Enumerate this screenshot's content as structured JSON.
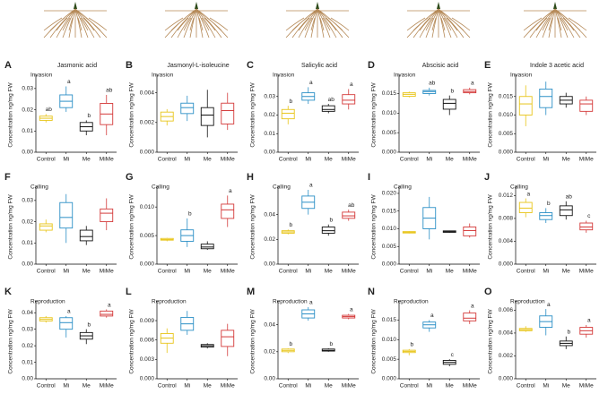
{
  "shared": {
    "categories": [
      "Control",
      "Mi",
      "Me",
      "MiMe"
    ],
    "colors": [
      "#e8c51a",
      "#2b8fc6",
      "#111111",
      "#d43a3a"
    ],
    "ylabel": "Concentration ng/mg FW"
  },
  "chart_data": [
    {
      "type": "box",
      "panel": "A",
      "title": "Jasmonic acid",
      "subtitle": "Invasion",
      "ylim": [
        0,
        0.035
      ],
      "yticks": [
        {
          "value": 0,
          "label": "0.00"
        },
        0.01,
        0.02,
        0.03
      ],
      "whisker_low": [
        0.014,
        0.019,
        0.008,
        0.008
      ],
      "q1": [
        0.015,
        0.021,
        0.01,
        0.013
      ],
      "median": [
        0.016,
        0.024,
        0.012,
        0.018
      ],
      "q3": [
        0.017,
        0.027,
        0.014,
        0.023
      ],
      "whisker_high": [
        0.018,
        0.031,
        0.015,
        0.027
      ],
      "letters": [
        "ab",
        "a",
        "b",
        "ab"
      ]
    },
    {
      "type": "box",
      "panel": "B",
      "title": "Jasmonyl-L-isoleucine",
      "subtitle": "Invasion",
      "ylim": [
        0,
        0.005
      ],
      "yticks": [
        {
          "value": 0,
          "label": "0.000"
        },
        0.002,
        0.004
      ],
      "whisker_low": [
        0.0018,
        0.0021,
        0.001,
        0.0015
      ],
      "q1": [
        0.0021,
        0.0026,
        0.0018,
        0.0019
      ],
      "median": [
        0.0024,
        0.003,
        0.0025,
        0.0028
      ],
      "q3": [
        0.0027,
        0.0033,
        0.003,
        0.0033
      ],
      "whisker_high": [
        0.0029,
        0.0038,
        0.0042,
        0.004
      ],
      "letters": [
        null,
        null,
        null,
        null
      ]
    },
    {
      "type": "box",
      "panel": "C",
      "title": "Salicylic acid",
      "subtitle": "Invasion",
      "ylim": [
        0,
        0.04
      ],
      "yticks": [
        {
          "value": 0,
          "label": "0.00"
        },
        0.01,
        0.02,
        0.03
      ],
      "whisker_low": [
        0.015,
        0.026,
        0.021,
        0.023
      ],
      "q1": [
        0.018,
        0.028,
        0.022,
        0.026
      ],
      "median": [
        0.021,
        0.03,
        0.023,
        0.028
      ],
      "q3": [
        0.023,
        0.032,
        0.025,
        0.031
      ],
      "whisker_high": [
        0.025,
        0.035,
        0.026,
        0.034
      ],
      "letters": [
        "b",
        "a",
        "ab",
        "a"
      ]
    },
    {
      "type": "box",
      "panel": "D",
      "title": "Abscisic acid",
      "subtitle": "Invasion",
      "ylim": [
        0,
        0.019
      ],
      "yticks": [
        {
          "value": 0,
          "label": "0.000"
        },
        0.005,
        {
          "value": 0.01,
          "label": "0.010"
        },
        0.015
      ],
      "whisker_low": [
        0.014,
        0.0145,
        0.0095,
        0.0148
      ],
      "q1": [
        0.0143,
        0.015,
        0.011,
        0.0152
      ],
      "median": [
        0.0148,
        0.0155,
        0.0125,
        0.0155
      ],
      "q3": [
        0.0152,
        0.0158,
        0.0135,
        0.016
      ],
      "whisker_high": [
        0.0155,
        0.0165,
        0.0145,
        0.0165
      ],
      "letters": [
        null,
        "ab",
        "b",
        "a"
      ]
    },
    {
      "type": "box",
      "panel": "E",
      "title": "Indole 3 acetic acid",
      "subtitle": "Invasion",
      "ylim": [
        0,
        0.02
      ],
      "yticks": [
        {
          "value": 0,
          "label": "0.000"
        },
        0.005,
        {
          "value": 0.01,
          "label": "0.010"
        },
        0.015
      ],
      "whisker_low": [
        0.007,
        0.01,
        0.012,
        0.01
      ],
      "q1": [
        0.01,
        0.012,
        0.013,
        0.011
      ],
      "median": [
        0.013,
        0.015,
        0.014,
        0.013
      ],
      "q3": [
        0.015,
        0.017,
        0.015,
        0.014
      ],
      "whisker_high": [
        0.018,
        0.019,
        0.016,
        0.015
      ],
      "letters": [
        null,
        null,
        null,
        null
      ]
    },
    {
      "type": "box",
      "panel": "F",
      "title": null,
      "subtitle": "Calling",
      "ylim": [
        0,
        0.035
      ],
      "yticks": [
        {
          "value": 0,
          "label": "0.00"
        },
        0.01,
        0.02,
        0.03
      ],
      "whisker_low": [
        0.015,
        0.01,
        0.009,
        0.016
      ],
      "q1": [
        0.016,
        0.017,
        0.011,
        0.02
      ],
      "median": [
        0.018,
        0.022,
        0.013,
        0.024
      ],
      "q3": [
        0.019,
        0.029,
        0.016,
        0.026
      ],
      "whisker_high": [
        0.021,
        0.033,
        0.018,
        0.031
      ],
      "letters": [
        null,
        null,
        null,
        null
      ]
    },
    {
      "type": "box",
      "panel": "G",
      "title": null,
      "subtitle": "Calling",
      "ylim": [
        0,
        0.013
      ],
      "yticks": [
        {
          "value": 0,
          "label": "0.000"
        },
        0.005,
        {
          "value": 0.01,
          "label": "0.010"
        }
      ],
      "whisker_low": [
        0.004,
        0.003,
        0.0025,
        0.0065
      ],
      "q1": [
        0.0042,
        0.004,
        0.0027,
        0.008
      ],
      "median": [
        0.0043,
        0.005,
        0.003,
        0.0095
      ],
      "q3": [
        0.0045,
        0.006,
        0.0035,
        0.0105
      ],
      "whisker_high": [
        0.0046,
        0.008,
        0.004,
        0.012
      ],
      "letters": [
        null,
        "b",
        null,
        "a"
      ]
    },
    {
      "type": "box",
      "panel": "H",
      "title": null,
      "subtitle": "Calling",
      "ylim": [
        0,
        0.06
      ],
      "yticks": [
        {
          "value": 0,
          "label": "0.00"
        },
        0.02,
        0.04
      ],
      "whisker_low": [
        0.024,
        0.04,
        0.023,
        0.035
      ],
      "q1": [
        0.025,
        0.045,
        0.025,
        0.037
      ],
      "median": [
        0.026,
        0.05,
        0.027,
        0.039
      ],
      "q3": [
        0.027,
        0.055,
        0.03,
        0.042
      ],
      "whisker_high": [
        0.028,
        0.06,
        0.032,
        0.044
      ],
      "letters": [
        "b",
        "a",
        "b",
        "ab"
      ]
    },
    {
      "type": "box",
      "panel": "I",
      "title": null,
      "subtitle": "Calling",
      "ylim": [
        0,
        0.021
      ],
      "yticks": [
        {
          "value": 0,
          "label": "0.000"
        },
        0.005,
        {
          "value": 0.01,
          "label": "0.010"
        },
        0.015,
        {
          "value": 0.02,
          "label": "0.020"
        }
      ],
      "whisker_low": [
        0.0087,
        0.007,
        0.0089,
        0.0075
      ],
      "q1": [
        0.0088,
        0.01,
        0.009,
        0.008
      ],
      "median": [
        0.009,
        0.013,
        0.0092,
        0.0095
      ],
      "q3": [
        0.0092,
        0.016,
        0.0094,
        0.0105
      ],
      "whisker_high": [
        0.0093,
        0.019,
        0.0095,
        0.0115
      ],
      "letters": [
        null,
        null,
        null,
        null
      ]
    },
    {
      "type": "box",
      "panel": "J",
      "title": null,
      "subtitle": "Calling",
      "ylim": [
        0,
        0.013
      ],
      "yticks": [
        {
          "value": 0,
          "label": "0.000"
        },
        0.004,
        0.008,
        0.012
      ],
      "whisker_low": [
        0.0082,
        0.0072,
        0.0078,
        0.0055
      ],
      "q1": [
        0.009,
        0.0078,
        0.0085,
        0.006
      ],
      "median": [
        0.0098,
        0.0085,
        0.0095,
        0.0065
      ],
      "q3": [
        0.0108,
        0.009,
        0.0102,
        0.0072
      ],
      "whisker_high": [
        0.0115,
        0.0098,
        0.011,
        0.0076
      ],
      "letters": [
        "a",
        "b",
        "ab",
        "c"
      ]
    },
    {
      "type": "box",
      "panel": "K",
      "title": null,
      "subtitle": "Reproduction",
      "ylim": [
        0,
        0.045
      ],
      "yticks": [
        {
          "value": 0,
          "label": "0.00"
        },
        0.01,
        0.02,
        0.03,
        0.04
      ],
      "whisker_low": [
        0.034,
        0.025,
        0.021,
        0.037
      ],
      "q1": [
        0.035,
        0.03,
        0.024,
        0.038
      ],
      "median": [
        0.036,
        0.034,
        0.026,
        0.039
      ],
      "q3": [
        0.037,
        0.037,
        0.028,
        0.041
      ],
      "whisker_high": [
        0.038,
        0.038,
        0.03,
        0.042
      ],
      "letters": [
        null,
        "a",
        "b",
        "a"
      ]
    },
    {
      "type": "box",
      "panel": "L",
      "title": null,
      "subtitle": "Reproduction",
      "ylim": [
        0,
        0.0115
      ],
      "yticks": [
        {
          "value": 0,
          "label": "0.000"
        },
        0.003,
        0.006,
        0.009
      ],
      "whisker_low": [
        0.004,
        0.0068,
        0.0047,
        0.0035
      ],
      "q1": [
        0.0055,
        0.0075,
        0.0049,
        0.005
      ],
      "median": [
        0.0063,
        0.0085,
        0.0051,
        0.0065
      ],
      "q3": [
        0.007,
        0.0095,
        0.0053,
        0.0075
      ],
      "whisker_high": [
        0.0078,
        0.0105,
        0.0055,
        0.0085
      ],
      "letters": [
        null,
        null,
        null,
        null
      ]
    },
    {
      "type": "box",
      "panel": "M",
      "title": null,
      "subtitle": "Reproduction",
      "ylim": [
        0,
        0.055
      ],
      "yticks": [
        {
          "value": 0,
          "label": "0.00"
        },
        0.02,
        0.04
      ],
      "whisker_low": [
        0.019,
        0.043,
        0.02,
        0.044
      ],
      "q1": [
        0.02,
        0.045,
        0.0205,
        0.045
      ],
      "median": [
        0.021,
        0.048,
        0.021,
        0.046
      ],
      "q3": [
        0.022,
        0.051,
        0.022,
        0.047
      ],
      "whisker_high": [
        0.0225,
        0.053,
        0.0225,
        0.048
      ],
      "letters": [
        "b",
        "a",
        "b",
        "a"
      ]
    },
    {
      "type": "box",
      "panel": "N",
      "title": null,
      "subtitle": "Reproduction",
      "ylim": [
        0,
        0.019
      ],
      "yticks": [
        {
          "value": 0,
          "label": "0.000"
        },
        0.005,
        {
          "value": 0.01,
          "label": "0.010"
        },
        0.015
      ],
      "whisker_low": [
        0.006,
        0.012,
        0.0032,
        0.014
      ],
      "q1": [
        0.0067,
        0.013,
        0.0037,
        0.0148
      ],
      "median": [
        0.007,
        0.0138,
        0.0042,
        0.0155
      ],
      "q3": [
        0.0073,
        0.0145,
        0.0047,
        0.0168
      ],
      "whisker_high": [
        0.0076,
        0.015,
        0.005,
        0.0175
      ],
      "letters": [
        "b",
        "a",
        "c",
        "a"
      ]
    },
    {
      "type": "box",
      "panel": "O",
      "title": null,
      "subtitle": "Reproduction",
      "ylim": [
        0,
        0.0065
      ],
      "yticks": [
        {
          "value": 0,
          "label": "0.000"
        },
        0.002,
        0.004,
        0.006
      ],
      "whisker_low": [
        0.0041,
        0.0038,
        0.0026,
        0.0036
      ],
      "q1": [
        0.0042,
        0.0045,
        0.0029,
        0.0039
      ],
      "median": [
        0.0043,
        0.005,
        0.0031,
        0.0042
      ],
      "q3": [
        0.0044,
        0.0055,
        0.0033,
        0.0045
      ],
      "whisker_high": [
        0.0046,
        0.0061,
        0.0037,
        0.0047
      ],
      "letters": [
        null,
        "a",
        "b",
        "a"
      ]
    }
  ]
}
